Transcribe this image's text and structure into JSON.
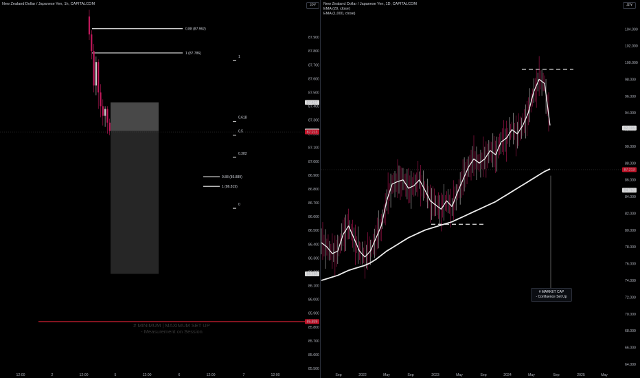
{
  "left_panel": {
    "title": "New Zealand Dollar / Japanese Yen, 1h, CAPITALCOM",
    "currency": "JPY",
    "note_line1": "# MINIMUM | MAXIMUM SET UP",
    "note_line2": "- Measurement on Session"
  },
  "right_panel": {
    "title": "New Zealand Dollar / Japanese Yen, 1D, CAPITALCOM",
    "ema1": "EMA (20, close)",
    "ema2": "EMA (1,000, close)",
    "currency": "JPY",
    "callout_line1": "# MARKET CAP",
    "callout_line2": "- Confluence Set Up"
  },
  "colors": {
    "background": "#000000",
    "candle_down": "#c2185b",
    "price_line": "#e0e0e0",
    "current_price_tag": "#c0152a",
    "min_max_line": "#b71c2c",
    "box_upper": "#555555",
    "box_lower": "#2a2a2a"
  },
  "chart_data": [
    {
      "type": "line",
      "panel": "left",
      "x_ticks": [
        "12:00",
        "2",
        "12:00",
        "5",
        "12:00",
        "6",
        "12:00",
        "7",
        "12:00"
      ],
      "y_ticks": [
        "87.900",
        "87.800",
        "87.700",
        "87.600",
        "87.500",
        "87.400",
        "87.300",
        "87.200",
        "87.100",
        "87.000",
        "86.900",
        "86.800",
        "86.700",
        "86.600",
        "86.500",
        "86.400",
        "86.300",
        "86.200",
        "86.100",
        "86.000",
        "85.900",
        "85.800",
        "85.700",
        "85.600",
        "85.500"
      ],
      "ylim": [
        85.5,
        88.05
      ],
      "price_tags": [
        {
          "label": "87.427",
          "value": 87.427,
          "style": "grey"
        },
        {
          "label": "87.220",
          "value": 87.22,
          "style": "grey"
        },
        {
          "label": "87.213",
          "value": 87.213,
          "style": "red"
        },
        {
          "label": "86.185",
          "value": 86.185,
          "style": "grey"
        },
        {
          "label": "85.839",
          "value": 85.839,
          "style": "red"
        }
      ],
      "fib_levels": [
        {
          "label": "0.88 (87.962)",
          "value": 87.962
        },
        {
          "label": "1 (87.786)",
          "value": 87.786
        },
        {
          "label": "0.88 (86.889)",
          "value": 86.889
        },
        {
          "label": "1 (86.819)",
          "value": 86.819
        }
      ],
      "fib_markers": [
        {
          "label": "1",
          "value": 87.75
        },
        {
          "label": "0.618",
          "value": 87.31
        },
        {
          "label": "0.5",
          "value": 87.21
        },
        {
          "label": "0.382",
          "value": 87.05
        },
        {
          "label": "0",
          "value": 86.68
        }
      ],
      "box_upper": [
        87.427,
        87.22
      ],
      "box_lower": [
        87.22,
        86.185
      ],
      "min_max_line": 85.839,
      "candles": [
        {
          "o": 88.05,
          "c": 87.92,
          "h": 88.1,
          "l": 87.88
        },
        {
          "o": 87.92,
          "c": 87.8,
          "h": 87.95,
          "l": 87.74
        },
        {
          "o": 87.8,
          "c": 87.55,
          "h": 87.85,
          "l": 87.5
        },
        {
          "o": 87.55,
          "c": 87.72,
          "h": 87.76,
          "l": 87.48
        },
        {
          "o": 87.72,
          "c": 87.5,
          "h": 87.74,
          "l": 87.38
        },
        {
          "o": 87.5,
          "c": 87.4,
          "h": 87.56,
          "l": 87.32
        },
        {
          "o": 87.4,
          "c": 87.33,
          "h": 87.45,
          "l": 87.26
        },
        {
          "o": 87.33,
          "c": 87.38,
          "h": 87.4,
          "l": 87.25
        },
        {
          "o": 87.38,
          "c": 87.28,
          "h": 87.4,
          "l": 87.2
        },
        {
          "o": 87.28,
          "c": 87.22,
          "h": 87.31,
          "l": 87.19
        }
      ]
    },
    {
      "type": "line",
      "panel": "right",
      "x_ticks": [
        "Sep",
        "2022",
        "May",
        "Sep",
        "2023",
        "May",
        "Sep",
        "2024",
        "May",
        "Sep",
        "2025",
        "May"
      ],
      "y_ticks": [
        "104.000",
        "102.000",
        "100.000",
        "98.000",
        "96.000",
        "94.000",
        "92.000",
        "90.000",
        "88.000",
        "86.000",
        "84.000",
        "82.000",
        "80.000",
        "78.000",
        "76.000",
        "74.000",
        "72.000",
        "70.000",
        "68.000",
        "66.000",
        "64.000"
      ],
      "ylim": [
        63.5,
        105.5
      ],
      "price_tags": [
        {
          "label": "92.195",
          "value": 92.195,
          "style": "grey"
        },
        {
          "label": "87.213",
          "value": 87.213,
          "style": "red"
        },
        {
          "label": "84.763",
          "value": 84.763,
          "style": "grey"
        }
      ],
      "series": [
        {
          "name": "EMA (20, close)",
          "values": [
            78.5,
            78.0,
            77.2,
            77.5,
            79.5,
            80.5,
            79.0,
            77.5,
            76.8,
            77.5,
            79.0,
            80.5,
            83.5,
            85.5,
            85.8,
            86.0,
            85.0,
            85.3,
            86.0,
            84.8,
            83.5,
            83.0,
            82.5,
            83.5,
            82.8,
            84.5,
            86.0,
            87.5,
            88.5,
            88.0,
            88.5,
            89.5,
            89.0,
            90.5,
            91.0,
            92.0,
            91.5,
            92.5,
            94.0,
            96.5,
            98.0,
            97.5,
            92.5
          ]
        },
        {
          "name": "EMA (1,000, close)",
          "values": [
            74.0,
            74.2,
            74.4,
            74.6,
            74.9,
            75.2,
            75.4,
            75.6,
            75.8,
            76.1,
            76.5,
            77.0,
            77.5,
            77.9,
            78.3,
            78.7,
            79.1,
            79.4,
            79.7,
            80.0,
            80.2,
            80.4,
            80.6,
            80.8,
            81.0,
            81.3,
            81.6,
            81.9,
            82.2,
            82.5,
            82.8,
            83.1,
            83.4,
            83.8,
            84.2,
            84.6,
            85.0,
            85.4,
            85.8,
            86.2,
            86.6,
            87.0,
            87.3
          ]
        }
      ],
      "levels": {
        "swing_high": 99.2,
        "swing_low": 80.7
      },
      "last_close": 87.213
    }
  ]
}
